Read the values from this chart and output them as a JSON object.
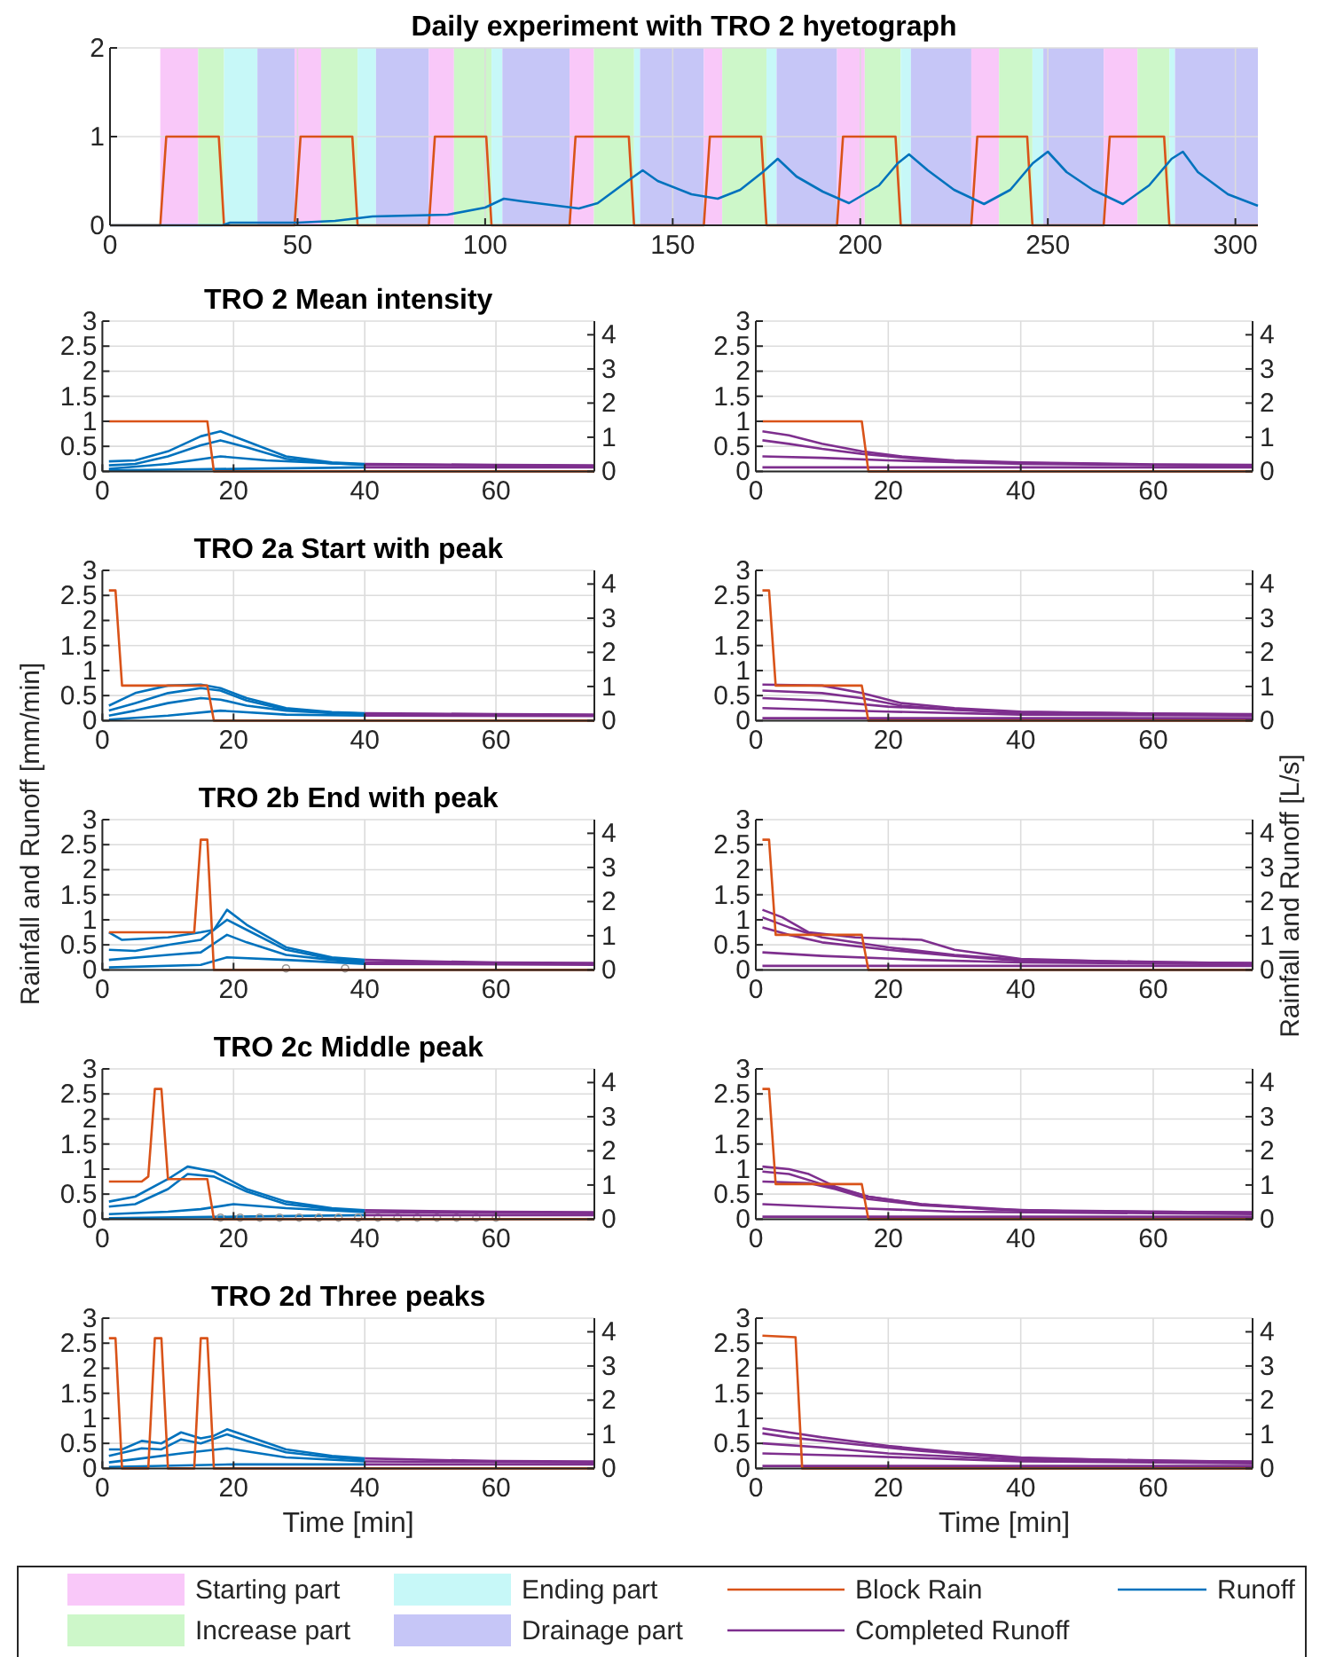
{
  "chart_data": [
    {
      "type": "line",
      "title": "Daily experiment with TRO 2 hyetograph",
      "xlim": [
        0,
        306
      ],
      "xticks": [
        0,
        50,
        100,
        150,
        200,
        250,
        300
      ],
      "ylim": [
        0,
        2
      ],
      "yticks": [
        0,
        1,
        2
      ],
      "grid": true,
      "legend": "bottom",
      "bands": [
        {
          "axis": "x",
          "from": 13.4,
          "to": 23.5,
          "label": "Starting part",
          "color": "#f9c8f9"
        },
        {
          "axis": "x",
          "from": 23.5,
          "to": 30.4,
          "label": "Increase part",
          "color": "#cdf7c9"
        },
        {
          "axis": "x",
          "from": 30.4,
          "to": 39.3,
          "label": "Ending part",
          "color": "#c7f8f8"
        },
        {
          "axis": "x",
          "from": 39.3,
          "to": 49.2,
          "label": "Drainage part",
          "color": "#c6c6f7"
        },
        {
          "axis": "x",
          "from": 49.2,
          "to": 56.3,
          "color": "#f9c8f9"
        },
        {
          "axis": "x",
          "from": 56.3,
          "to": 66,
          "color": "#cdf7c9"
        },
        {
          "axis": "x",
          "from": 66,
          "to": 70.9,
          "color": "#c7f8f8"
        },
        {
          "axis": "x",
          "from": 70.9,
          "to": 85,
          "color": "#c6c6f7"
        },
        {
          "axis": "x",
          "from": 85,
          "to": 91.7,
          "color": "#f9c8f9"
        },
        {
          "axis": "x",
          "from": 91.7,
          "to": 101.7,
          "color": "#cdf7c9"
        },
        {
          "axis": "x",
          "from": 101.7,
          "to": 104.6,
          "color": "#c7f8f8"
        },
        {
          "axis": "x",
          "from": 104.6,
          "to": 122.5,
          "color": "#c6c6f7"
        },
        {
          "axis": "x",
          "from": 122.5,
          "to": 129,
          "color": "#f9c8f9"
        },
        {
          "axis": "x",
          "from": 129,
          "to": 139.7,
          "color": "#cdf7c9"
        },
        {
          "axis": "x",
          "from": 139.7,
          "to": 141.3,
          "color": "#c7f8f8"
        },
        {
          "axis": "x",
          "from": 141.3,
          "to": 158.3,
          "color": "#c6c6f7"
        },
        {
          "axis": "x",
          "from": 158.3,
          "to": 163.2,
          "color": "#f9c8f9"
        },
        {
          "axis": "x",
          "from": 163.2,
          "to": 175,
          "color": "#cdf7c9"
        },
        {
          "axis": "x",
          "from": 175,
          "to": 177.7,
          "color": "#c7f8f8"
        },
        {
          "axis": "x",
          "from": 177.7,
          "to": 193.8,
          "color": "#c6c6f7"
        },
        {
          "axis": "x",
          "from": 193.8,
          "to": 201.2,
          "color": "#f9c8f9"
        },
        {
          "axis": "x",
          "from": 201.2,
          "to": 210.8,
          "color": "#cdf7c9"
        },
        {
          "axis": "x",
          "from": 210.8,
          "to": 213.5,
          "color": "#c7f8f8"
        },
        {
          "axis": "x",
          "from": 213.5,
          "to": 229.6,
          "color": "#c6c6f7"
        },
        {
          "axis": "x",
          "from": 229.6,
          "to": 237,
          "color": "#f9c8f9"
        },
        {
          "axis": "x",
          "from": 237,
          "to": 245.9,
          "color": "#cdf7c9"
        },
        {
          "axis": "x",
          "from": 245.9,
          "to": 248.8,
          "color": "#c7f8f8"
        },
        {
          "axis": "x",
          "from": 248.8,
          "to": 264.9,
          "color": "#c6c6f7"
        },
        {
          "axis": "x",
          "from": 264.9,
          "to": 273.9,
          "color": "#f9c8f9"
        },
        {
          "axis": "x",
          "from": 273.9,
          "to": 282.4,
          "color": "#cdf7c9"
        },
        {
          "axis": "x",
          "from": 282.4,
          "to": 283.9,
          "color": "#c7f8f8"
        },
        {
          "axis": "x",
          "from": 283.9,
          "to": 306,
          "color": "#c6c6f7"
        }
      ],
      "series": [
        {
          "name": "Block Rain",
          "color": "#d95319",
          "x": [
            0,
            13.4,
            15,
            29,
            30.4,
            49.2,
            50.8,
            64.6,
            66,
            85,
            86.6,
            100.3,
            101.7,
            122.5,
            124.1,
            138.3,
            139.7,
            158.3,
            159.9,
            173.6,
            175,
            193.8,
            195.4,
            209.4,
            210.8,
            229.6,
            231.2,
            244.5,
            245.9,
            264.9,
            266.5,
            281,
            282.4,
            306
          ],
          "values": [
            0,
            0,
            1,
            1,
            0,
            0,
            1,
            1,
            0,
            0,
            1,
            1,
            0,
            0,
            1,
            1,
            0,
            0,
            1,
            1,
            0,
            0,
            1,
            1,
            0,
            0,
            1,
            1,
            0,
            0,
            1,
            1,
            0,
            0
          ]
        },
        {
          "name": "Runoff",
          "color": "#0072bd",
          "x": [
            0,
            30,
            32,
            50,
            60,
            70,
            90,
            100,
            105,
            110,
            125,
            130,
            138,
            142,
            146,
            155,
            162,
            168,
            174,
            178,
            183,
            190,
            197,
            205,
            210,
            213,
            218,
            225,
            233,
            240,
            246,
            250,
            255,
            262,
            270,
            277,
            283,
            286,
            290,
            298,
            306
          ],
          "values": [
            0,
            0,
            0.03,
            0.03,
            0.05,
            0.1,
            0.12,
            0.2,
            0.3,
            0.27,
            0.19,
            0.25,
            0.5,
            0.62,
            0.5,
            0.35,
            0.3,
            0.4,
            0.6,
            0.75,
            0.55,
            0.38,
            0.25,
            0.45,
            0.7,
            0.8,
            0.62,
            0.4,
            0.24,
            0.4,
            0.7,
            0.83,
            0.6,
            0.4,
            0.24,
            0.45,
            0.75,
            0.83,
            0.6,
            0.35,
            0.22
          ]
        }
      ]
    },
    {
      "type": "line",
      "title": "TRO 2 Mean intensity",
      "xlim": [
        0,
        75
      ],
      "xticks": [
        0,
        20,
        40,
        60
      ],
      "ylim": [
        0,
        3
      ],
      "yticks": [
        0,
        0.5,
        1,
        1.5,
        2,
        2.5,
        3
      ],
      "y2lim": [
        0,
        4.4
      ],
      "y2ticks": [
        0,
        1,
        2,
        3,
        4
      ],
      "grid": true,
      "series": [
        {
          "name": "Runoff",
          "color": "#0072bd",
          "x": [
            1,
            5,
            10,
            15,
            18,
            22,
            28,
            35,
            40
          ],
          "values": [
            0.2,
            0.22,
            0.4,
            0.7,
            0.8,
            0.6,
            0.3,
            0.18,
            0.15
          ]
        },
        {
          "color": "#0072bd",
          "x": [
            1,
            5,
            10,
            15,
            18,
            22,
            28,
            35,
            40
          ],
          "values": [
            0.12,
            0.15,
            0.3,
            0.52,
            0.62,
            0.48,
            0.25,
            0.16,
            0.14
          ]
        },
        {
          "color": "#0072bd",
          "x": [
            1,
            10,
            18,
            25,
            40
          ],
          "values": [
            0.05,
            0.15,
            0.3,
            0.22,
            0.13
          ]
        },
        {
          "color": "#0072bd",
          "x": [
            1,
            20,
            40
          ],
          "values": [
            0.02,
            0.05,
            0.08
          ]
        },
        {
          "name": "Completed Runoff",
          "color": "#7e2f8e",
          "x": [
            40,
            50,
            60,
            75
          ],
          "values": [
            0.15,
            0.14,
            0.13,
            0.12
          ]
        },
        {
          "color": "#7e2f8e",
          "x": [
            40,
            75
          ],
          "values": [
            0.13,
            0.11
          ]
        },
        {
          "color": "#7e2f8e",
          "x": [
            40,
            75
          ],
          "values": [
            0.08,
            0.08
          ]
        },
        {
          "name": "Block Rain",
          "color": "#d95319",
          "x": [
            1,
            16,
            17,
            75
          ],
          "values": [
            1,
            1,
            0,
            0
          ]
        }
      ]
    },
    {
      "type": "line",
      "xlim": [
        0,
        75
      ],
      "xticks": [
        0,
        20,
        40,
        60
      ],
      "ylim": [
        0,
        3
      ],
      "yticks": [
        0,
        0.5,
        1,
        1.5,
        2,
        2.5,
        3
      ],
      "y2lim": [
        0,
        4.4
      ],
      "y2ticks": [
        0,
        1,
        2,
        3,
        4
      ],
      "grid": true,
      "series": [
        {
          "name": "Completed Runoff",
          "color": "#7e2f8e",
          "x": [
            1,
            5,
            10,
            16,
            22,
            30,
            40,
            60,
            75
          ],
          "values": [
            0.8,
            0.72,
            0.55,
            0.4,
            0.3,
            0.22,
            0.18,
            0.14,
            0.13
          ]
        },
        {
          "color": "#7e2f8e",
          "x": [
            1,
            5,
            10,
            16,
            22,
            30,
            40,
            60,
            75
          ],
          "values": [
            0.62,
            0.55,
            0.45,
            0.35,
            0.28,
            0.2,
            0.17,
            0.13,
            0.12
          ]
        },
        {
          "color": "#7e2f8e",
          "x": [
            1,
            10,
            20,
            40,
            75
          ],
          "values": [
            0.3,
            0.27,
            0.22,
            0.15,
            0.11
          ]
        },
        {
          "color": "#7e2f8e",
          "x": [
            1,
            40,
            75
          ],
          "values": [
            0.08,
            0.08,
            0.08
          ]
        },
        {
          "name": "Block Rain",
          "color": "#d95319",
          "x": [
            1,
            16,
            17,
            75
          ],
          "values": [
            1,
            1,
            0,
            0
          ]
        }
      ]
    },
    {
      "type": "line",
      "title": "TRO 2a Start with peak",
      "xlim": [
        0,
        75
      ],
      "xticks": [
        0,
        20,
        40,
        60
      ],
      "ylim": [
        0,
        3
      ],
      "yticks": [
        0,
        0.5,
        1,
        1.5,
        2,
        2.5,
        3
      ],
      "y2lim": [
        0,
        4.4
      ],
      "y2ticks": [
        0,
        1,
        2,
        3,
        4
      ],
      "grid": true,
      "series": [
        {
          "name": "Runoff",
          "color": "#0072bd",
          "x": [
            1,
            5,
            10,
            15,
            18,
            22,
            28,
            35,
            40
          ],
          "values": [
            0.3,
            0.55,
            0.7,
            0.72,
            0.65,
            0.45,
            0.25,
            0.17,
            0.15
          ]
        },
        {
          "color": "#0072bd",
          "x": [
            1,
            5,
            10,
            15,
            18,
            22,
            28,
            35,
            40
          ],
          "values": [
            0.2,
            0.35,
            0.55,
            0.65,
            0.6,
            0.4,
            0.22,
            0.16,
            0.14
          ]
        },
        {
          "color": "#0072bd",
          "x": [
            1,
            5,
            10,
            15,
            18,
            22,
            28,
            35,
            40
          ],
          "values": [
            0.1,
            0.2,
            0.35,
            0.45,
            0.42,
            0.3,
            0.2,
            0.15,
            0.13
          ]
        },
        {
          "color": "#0072bd",
          "x": [
            1,
            10,
            18,
            28,
            40
          ],
          "values": [
            0.02,
            0.1,
            0.2,
            0.12,
            0.1
          ]
        },
        {
          "name": "Completed Runoff",
          "color": "#7e2f8e",
          "x": [
            40,
            50,
            60,
            75
          ],
          "values": [
            0.15,
            0.14,
            0.13,
            0.12
          ]
        },
        {
          "color": "#7e2f8e",
          "x": [
            40,
            75
          ],
          "values": [
            0.13,
            0.11
          ]
        },
        {
          "color": "#7e2f8e",
          "x": [
            40,
            75
          ],
          "values": [
            0.1,
            0.09
          ]
        },
        {
          "name": "Block Rain",
          "color": "#d95319",
          "x": [
            1,
            2,
            3,
            16,
            17,
            75
          ],
          "values": [
            2.6,
            2.6,
            0.7,
            0.7,
            0,
            0
          ]
        }
      ]
    },
    {
      "type": "line",
      "xlim": [
        0,
        75
      ],
      "xticks": [
        0,
        20,
        40,
        60
      ],
      "ylim": [
        0,
        3
      ],
      "yticks": [
        0,
        0.5,
        1,
        1.5,
        2,
        2.5,
        3
      ],
      "y2lim": [
        0,
        4.4
      ],
      "y2ticks": [
        0,
        1,
        2,
        3,
        4
      ],
      "grid": true,
      "series": [
        {
          "name": "Completed Runoff",
          "color": "#7e2f8e",
          "x": [
            1,
            10,
            16,
            22,
            30,
            40,
            60,
            75
          ],
          "values": [
            0.72,
            0.7,
            0.55,
            0.35,
            0.25,
            0.18,
            0.14,
            0.13
          ]
        },
        {
          "color": "#7e2f8e",
          "x": [
            1,
            10,
            16,
            22,
            30,
            40,
            75
          ],
          "values": [
            0.6,
            0.55,
            0.45,
            0.3,
            0.22,
            0.17,
            0.12
          ]
        },
        {
          "color": "#7e2f8e",
          "x": [
            1,
            10,
            20,
            40,
            75
          ],
          "values": [
            0.45,
            0.4,
            0.28,
            0.15,
            0.11
          ]
        },
        {
          "color": "#7e2f8e",
          "x": [
            1,
            20,
            40,
            75
          ],
          "values": [
            0.25,
            0.18,
            0.12,
            0.1
          ]
        },
        {
          "color": "#7e2f8e",
          "x": [
            1,
            75
          ],
          "values": [
            0.05,
            0.05
          ]
        },
        {
          "name": "Block Rain",
          "color": "#d95319",
          "x": [
            1,
            2,
            3,
            16,
            17,
            75
          ],
          "values": [
            2.6,
            2.6,
            0.7,
            0.7,
            0,
            0
          ]
        }
      ]
    },
    {
      "type": "line",
      "title": "TRO 2b End with peak",
      "ylabel": "Rainfall and Runoff [mm/min]",
      "xlim": [
        0,
        75
      ],
      "xticks": [
        0,
        20,
        40,
        60
      ],
      "ylim": [
        0,
        3
      ],
      "yticks": [
        0,
        0.5,
        1,
        1.5,
        2,
        2.5,
        3
      ],
      "y2lim": [
        0,
        4.4
      ],
      "y2ticks": [
        0,
        1,
        2,
        3,
        4
      ],
      "grid": true,
      "series": [
        {
          "name": "Runoff",
          "color": "#0072bd",
          "x": [
            1,
            3,
            10,
            15,
            17,
            19,
            22,
            28,
            35,
            40
          ],
          "values": [
            0.75,
            0.6,
            0.65,
            0.75,
            0.8,
            1.2,
            0.9,
            0.45,
            0.25,
            0.2
          ]
        },
        {
          "color": "#0072bd",
          "x": [
            1,
            5,
            10,
            15,
            19,
            22,
            28,
            35,
            40
          ],
          "values": [
            0.4,
            0.38,
            0.5,
            0.6,
            1,
            0.8,
            0.4,
            0.22,
            0.17
          ]
        },
        {
          "color": "#0072bd",
          "x": [
            1,
            10,
            15,
            19,
            22,
            28,
            35,
            40
          ],
          "values": [
            0.2,
            0.3,
            0.35,
            0.7,
            0.55,
            0.3,
            0.2,
            0.15
          ]
        },
        {
          "color": "#0072bd",
          "x": [
            1,
            15,
            19,
            28,
            40
          ],
          "values": [
            0.05,
            0.1,
            0.25,
            0.2,
            0.12
          ]
        },
        {
          "color": "#999999",
          "type": "scatter",
          "marker": "circle",
          "x": [
            28,
            37
          ],
          "values": [
            0.03,
            0.03
          ]
        },
        {
          "name": "Completed Runoff",
          "color": "#7e2f8e",
          "x": [
            40,
            50,
            60,
            75
          ],
          "values": [
            0.2,
            0.17,
            0.15,
            0.14
          ]
        },
        {
          "color": "#7e2f8e",
          "x": [
            40,
            75
          ],
          "values": [
            0.15,
            0.12
          ]
        },
        {
          "color": "#7e2f8e",
          "x": [
            40,
            75
          ],
          "values": [
            0.12,
            0.1
          ]
        },
        {
          "name": "Block Rain",
          "color": "#d95319",
          "x": [
            1,
            14,
            15,
            16,
            17,
            75
          ],
          "values": [
            0.75,
            0.75,
            2.6,
            2.6,
            0,
            0
          ]
        }
      ]
    },
    {
      "type": "line",
      "y2label": "Rainfall and Runoff [L/s]",
      "xlim": [
        0,
        75
      ],
      "xticks": [
        0,
        20,
        40,
        60
      ],
      "ylim": [
        0,
        3
      ],
      "yticks": [
        0,
        0.5,
        1,
        1.5,
        2,
        2.5,
        3
      ],
      "y2lim": [
        0,
        4.4
      ],
      "y2ticks": [
        0,
        1,
        2,
        3,
        4
      ],
      "grid": true,
      "series": [
        {
          "name": "Completed Runoff",
          "color": "#7e2f8e",
          "x": [
            1,
            4,
            8,
            15,
            25,
            30,
            40,
            60,
            75
          ],
          "values": [
            1.2,
            1.05,
            0.75,
            0.65,
            0.6,
            0.4,
            0.22,
            0.15,
            0.14
          ]
        },
        {
          "color": "#7e2f8e",
          "x": [
            1,
            5,
            10,
            20,
            30,
            40,
            75
          ],
          "values": [
            1.05,
            0.85,
            0.65,
            0.45,
            0.3,
            0.2,
            0.13
          ]
        },
        {
          "color": "#7e2f8e",
          "x": [
            1,
            5,
            10,
            20,
            30,
            40,
            75
          ],
          "values": [
            0.85,
            0.7,
            0.55,
            0.4,
            0.28,
            0.18,
            0.12
          ]
        },
        {
          "color": "#7e2f8e",
          "x": [
            1,
            10,
            25,
            40,
            75
          ],
          "values": [
            0.35,
            0.28,
            0.2,
            0.15,
            0.11
          ]
        },
        {
          "color": "#7e2f8e",
          "x": [
            1,
            75
          ],
          "values": [
            0.08,
            0.08
          ]
        },
        {
          "name": "Block Rain",
          "color": "#d95319",
          "x": [
            1,
            2,
            3,
            16,
            17,
            75
          ],
          "values": [
            2.6,
            2.6,
            0.7,
            0.7,
            0,
            0
          ]
        }
      ]
    },
    {
      "type": "line",
      "title": "TRO 2c Middle peak",
      "xlim": [
        0,
        75
      ],
      "xticks": [
        0,
        20,
        40,
        60
      ],
      "ylim": [
        0,
        3
      ],
      "yticks": [
        0,
        0.5,
        1,
        1.5,
        2,
        2.5,
        3
      ],
      "y2lim": [
        0,
        4.4
      ],
      "y2ticks": [
        0,
        1,
        2,
        3,
        4
      ],
      "grid": true,
      "series": [
        {
          "name": "Runoff",
          "color": "#0072bd",
          "x": [
            1,
            5,
            10,
            13,
            17,
            22,
            28,
            35,
            40
          ],
          "values": [
            0.35,
            0.45,
            0.8,
            1.05,
            0.95,
            0.6,
            0.35,
            0.22,
            0.18
          ]
        },
        {
          "color": "#0072bd",
          "x": [
            1,
            5,
            10,
            13,
            17,
            22,
            28,
            35,
            40
          ],
          "values": [
            0.25,
            0.3,
            0.6,
            0.9,
            0.85,
            0.55,
            0.3,
            0.2,
            0.16
          ]
        },
        {
          "color": "#0072bd",
          "x": [
            1,
            10,
            15,
            20,
            28,
            40
          ],
          "values": [
            0.1,
            0.15,
            0.2,
            0.3,
            0.22,
            0.14
          ]
        },
        {
          "color": "#0072bd",
          "x": [
            1,
            20,
            40
          ],
          "values": [
            0.02,
            0.05,
            0.08
          ]
        },
        {
          "color": "#999999",
          "type": "scatter",
          "marker": "circle",
          "x": [
            18,
            21,
            24,
            27,
            30,
            33,
            36,
            39,
            42,
            45,
            48,
            51,
            54,
            57,
            60
          ],
          "values": [
            0.03,
            0.03,
            0.03,
            0.03,
            0.03,
            0.03,
            0.03,
            0.03,
            0.03,
            0.03,
            0.03,
            0.03,
            0.03,
            0.03,
            0.03
          ]
        },
        {
          "name": "Completed Runoff",
          "color": "#7e2f8e",
          "x": [
            40,
            50,
            60,
            75
          ],
          "values": [
            0.18,
            0.16,
            0.15,
            0.14
          ]
        },
        {
          "color": "#7e2f8e",
          "x": [
            40,
            75
          ],
          "values": [
            0.14,
            0.12
          ]
        },
        {
          "color": "#7e2f8e",
          "x": [
            40,
            75
          ],
          "values": [
            0.08,
            0.08
          ]
        },
        {
          "name": "Block Rain",
          "color": "#d95319",
          "x": [
            1,
            6,
            7,
            8,
            9,
            10,
            16,
            17,
            75
          ],
          "values": [
            0.75,
            0.75,
            0.85,
            2.6,
            2.6,
            0.8,
            0.8,
            0,
            0
          ]
        }
      ]
    },
    {
      "type": "line",
      "xlim": [
        0,
        75
      ],
      "xticks": [
        0,
        20,
        40,
        60
      ],
      "ylim": [
        0,
        3
      ],
      "yticks": [
        0,
        0.5,
        1,
        1.5,
        2,
        2.5,
        3
      ],
      "y2lim": [
        0,
        4.4
      ],
      "y2ticks": [
        0,
        1,
        2,
        3,
        4
      ],
      "grid": true,
      "series": [
        {
          "name": "Completed Runoff",
          "color": "#7e2f8e",
          "x": [
            1,
            5,
            8,
            12,
            17,
            25,
            35,
            50,
            75
          ],
          "values": [
            1.05,
            1,
            0.9,
            0.65,
            0.45,
            0.3,
            0.2,
            0.15,
            0.14
          ]
        },
        {
          "color": "#7e2f8e",
          "x": [
            1,
            5,
            10,
            17,
            25,
            40,
            75
          ],
          "values": [
            0.95,
            0.9,
            0.7,
            0.45,
            0.3,
            0.18,
            0.13
          ]
        },
        {
          "color": "#7e2f8e",
          "x": [
            1,
            8,
            12,
            17,
            25,
            40,
            75
          ],
          "values": [
            0.75,
            0.72,
            0.6,
            0.4,
            0.28,
            0.17,
            0.12
          ]
        },
        {
          "color": "#7e2f8e",
          "x": [
            1,
            15,
            30,
            75
          ],
          "values": [
            0.3,
            0.22,
            0.15,
            0.1
          ]
        },
        {
          "color": "#7e2f8e",
          "x": [
            1,
            75
          ],
          "values": [
            0.05,
            0.05
          ]
        },
        {
          "name": "Block Rain",
          "color": "#d95319",
          "x": [
            1,
            2,
            3,
            16,
            17,
            75
          ],
          "values": [
            2.6,
            2.6,
            0.7,
            0.7,
            0,
            0
          ]
        }
      ]
    },
    {
      "type": "line",
      "title": "TRO 2d Three peaks",
      "xlabel": "Time [min]",
      "xlim": [
        0,
        75
      ],
      "xticks": [
        0,
        20,
        40,
        60
      ],
      "ylim": [
        0,
        3
      ],
      "yticks": [
        0,
        0.5,
        1,
        1.5,
        2,
        2.5,
        3
      ],
      "y2lim": [
        0,
        4.4
      ],
      "y2ticks": [
        0,
        1,
        2,
        3,
        4
      ],
      "grid": true,
      "series": [
        {
          "name": "Runoff",
          "color": "#0072bd",
          "x": [
            1,
            3,
            6,
            9,
            12,
            15,
            17,
            19,
            22,
            28,
            35,
            40
          ],
          "values": [
            0.38,
            0.38,
            0.55,
            0.5,
            0.72,
            0.6,
            0.65,
            0.78,
            0.65,
            0.38,
            0.25,
            0.2
          ]
        },
        {
          "color": "#0072bd",
          "x": [
            1,
            6,
            9,
            12,
            15,
            19,
            22,
            28,
            35,
            40
          ],
          "values": [
            0.25,
            0.4,
            0.38,
            0.58,
            0.5,
            0.68,
            0.55,
            0.32,
            0.22,
            0.17
          ]
        },
        {
          "color": "#0072bd",
          "x": [
            1,
            6,
            12,
            19,
            28,
            40
          ],
          "values": [
            0.12,
            0.2,
            0.3,
            0.4,
            0.22,
            0.14
          ]
        },
        {
          "color": "#0072bd",
          "x": [
            1,
            20,
            40
          ],
          "values": [
            0.03,
            0.08,
            0.08
          ]
        },
        {
          "name": "Completed Runoff",
          "color": "#7e2f8e",
          "x": [
            40,
            50,
            60,
            75
          ],
          "values": [
            0.2,
            0.17,
            0.15,
            0.14
          ]
        },
        {
          "color": "#7e2f8e",
          "x": [
            40,
            75
          ],
          "values": [
            0.14,
            0.12
          ]
        },
        {
          "color": "#7e2f8e",
          "x": [
            40,
            75
          ],
          "values": [
            0.08,
            0.08
          ]
        },
        {
          "name": "Block Rain",
          "color": "#d95319",
          "x": [
            1,
            2,
            3,
            7,
            8,
            9,
            10,
            14,
            15,
            16,
            17,
            75
          ],
          "values": [
            2.6,
            2.6,
            0,
            0,
            2.6,
            2.6,
            0,
            0,
            2.6,
            2.6,
            0,
            0
          ]
        }
      ]
    },
    {
      "type": "line",
      "xlabel": "Time [min]",
      "xlim": [
        0,
        75
      ],
      "xticks": [
        0,
        20,
        40,
        60
      ],
      "ylim": [
        0,
        3
      ],
      "yticks": [
        0,
        0.5,
        1,
        1.5,
        2,
        2.5,
        3
      ],
      "y2lim": [
        0,
        4.4
      ],
      "y2ticks": [
        0,
        1,
        2,
        3,
        4
      ],
      "grid": true,
      "series": [
        {
          "name": "Completed Runoff",
          "color": "#7e2f8e",
          "x": [
            1,
            5,
            10,
            20,
            30,
            40,
            60,
            75
          ],
          "values": [
            0.8,
            0.72,
            0.62,
            0.45,
            0.32,
            0.22,
            0.15,
            0.14
          ]
        },
        {
          "color": "#7e2f8e",
          "x": [
            1,
            5,
            15,
            25,
            40,
            75
          ],
          "values": [
            0.7,
            0.62,
            0.48,
            0.35,
            0.2,
            0.13
          ]
        },
        {
          "color": "#7e2f8e",
          "x": [
            1,
            10,
            20,
            40,
            75
          ],
          "values": [
            0.5,
            0.42,
            0.3,
            0.17,
            0.12
          ]
        },
        {
          "color": "#7e2f8e",
          "x": [
            1,
            15,
            40,
            75
          ],
          "values": [
            0.3,
            0.25,
            0.14,
            0.1
          ]
        },
        {
          "color": "#7e2f8e",
          "x": [
            1,
            75
          ],
          "values": [
            0.05,
            0.05
          ]
        },
        {
          "name": "Block Rain",
          "color": "#d95319",
          "x": [
            1,
            6,
            7,
            75
          ],
          "values": [
            2.65,
            2.62,
            0,
            0
          ]
        }
      ]
    }
  ]
}
